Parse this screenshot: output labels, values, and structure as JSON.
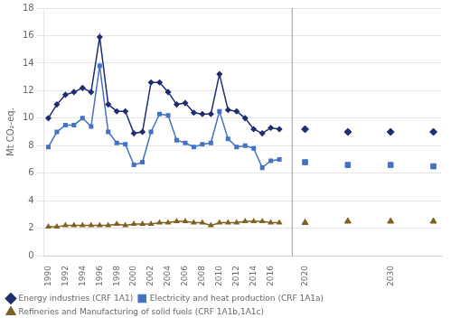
{
  "chart_data": {
    "type": "line",
    "y_label": "Mt CO₂-eq.",
    "xlim": [
      1989.5,
      2036
    ],
    "xticks": [
      1990,
      1992,
      1994,
      1996,
      1998,
      2000,
      2002,
      2004,
      2006,
      2008,
      2010,
      2012,
      2014,
      2016,
      2020,
      2030
    ],
    "ylim": [
      0,
      18
    ],
    "yticks": [
      0,
      2,
      4,
      6,
      8,
      10,
      12,
      14,
      16,
      18
    ],
    "grid": "y",
    "legend": "bottom",
    "vline": 2018.5,
    "series": [
      {
        "name": "Energy industries (CRF 1A1)",
        "color": "#1f2d6e",
        "marker": "diamond",
        "x": [
          1990,
          1991,
          1992,
          1993,
          1994,
          1995,
          1996,
          1997,
          1998,
          1999,
          2000,
          2001,
          2002,
          2003,
          2004,
          2005,
          2006,
          2007,
          2008,
          2009,
          2010,
          2011,
          2012,
          2013,
          2014,
          2015,
          2016,
          2017
        ],
        "values": [
          10.0,
          11.0,
          11.7,
          11.9,
          12.2,
          11.9,
          15.9,
          11.0,
          10.5,
          10.5,
          8.9,
          9.0,
          12.6,
          12.6,
          11.9,
          11.0,
          11.1,
          10.4,
          10.3,
          10.3,
          13.2,
          10.6,
          10.5,
          10.0,
          9.2,
          8.9,
          9.3,
          9.2
        ]
      },
      {
        "name": "Electricity and heat production (CRF 1A1a)",
        "color": "#4472c4",
        "marker": "square",
        "x": [
          1990,
          1991,
          1992,
          1993,
          1994,
          1995,
          1996,
          1997,
          1998,
          1999,
          2000,
          2001,
          2002,
          2003,
          2004,
          2005,
          2006,
          2007,
          2008,
          2009,
          2010,
          2011,
          2012,
          2013,
          2014,
          2015,
          2016,
          2017
        ],
        "values": [
          7.9,
          9.0,
          9.5,
          9.5,
          10.0,
          9.4,
          13.8,
          9.0,
          8.2,
          8.1,
          6.6,
          6.8,
          9.0,
          10.3,
          10.2,
          8.4,
          8.2,
          7.9,
          8.1,
          8.2,
          10.5,
          8.5,
          7.9,
          8.0,
          7.8,
          6.4,
          6.9,
          7.0
        ]
      },
      {
        "name": "Refineries and Manufacturing of solid fuels (CRF 1A1b,1A1c)",
        "color": "#7f6020",
        "marker": "triangle",
        "x": [
          1990,
          1991,
          1992,
          1993,
          1994,
          1995,
          1996,
          1997,
          1998,
          1999,
          2000,
          2001,
          2002,
          2003,
          2004,
          2005,
          2006,
          2007,
          2008,
          2009,
          2010,
          2011,
          2012,
          2013,
          2014,
          2015,
          2016,
          2017
        ],
        "values": [
          2.1,
          2.1,
          2.2,
          2.2,
          2.2,
          2.2,
          2.2,
          2.2,
          2.3,
          2.2,
          2.3,
          2.3,
          2.3,
          2.4,
          2.4,
          2.5,
          2.5,
          2.4,
          2.4,
          2.2,
          2.4,
          2.4,
          2.4,
          2.5,
          2.5,
          2.5,
          2.4,
          2.4
        ]
      },
      {
        "type": "scatter",
        "color": "#1f2d6e",
        "marker": "diamond",
        "x": [
          2020,
          2025,
          2030,
          2035
        ],
        "values": [
          9.2,
          9.0,
          9.0,
          9.0
        ]
      },
      {
        "type": "scatter",
        "color": "#4472c4",
        "marker": "square",
        "x": [
          2020,
          2025,
          2030,
          2035
        ],
        "values": [
          6.8,
          6.6,
          6.6,
          6.5
        ]
      },
      {
        "type": "scatter",
        "color": "#7f6020",
        "marker": "triangle",
        "x": [
          2020,
          2025,
          2030,
          2035
        ],
        "values": [
          2.4,
          2.5,
          2.5,
          2.5
        ]
      }
    ]
  }
}
